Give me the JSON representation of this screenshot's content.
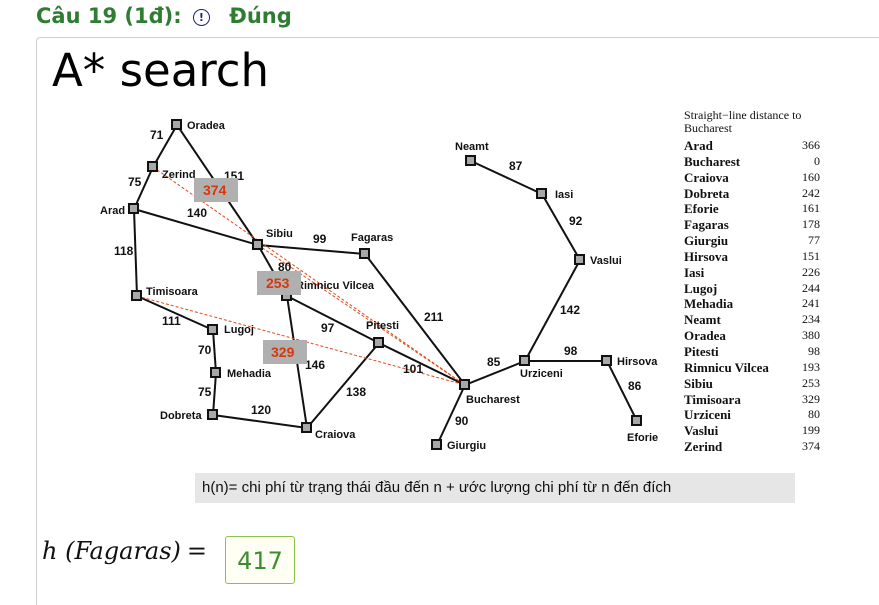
{
  "question": {
    "label": "Câu 19 (1đ):",
    "info_icon": "info-circle-icon",
    "status": "Đúng",
    "status_color": "#2e7d32"
  },
  "title": "A* search",
  "map": {
    "cities": [
      "Oradea",
      "Zerind",
      "Arad",
      "Sibiu",
      "Fagaras",
      "Timisoara",
      "Rimnicu Vilcea",
      "Lugoj",
      "Pitesti",
      "Mehadia",
      "Dobreta",
      "Craiova",
      "Bucharest",
      "Giurgiu",
      "Neamt",
      "Iasi",
      "Vaslui",
      "Urziceni",
      "Hirsova",
      "Eforie"
    ],
    "distances": [
      "71",
      "151",
      "75",
      "140",
      "118",
      "99",
      "80",
      "111",
      "97",
      "211",
      "70",
      "146",
      "101",
      "75",
      "138",
      "120",
      "90",
      "85",
      "98",
      "86",
      "142",
      "92",
      "87"
    ],
    "heuristic_badges": [
      "374",
      "253",
      "329"
    ],
    "badge_text_color": "#d4380d",
    "dashed_color": "#e04a1a"
  },
  "table": {
    "header": "Straight−line distance to Bucharest",
    "rows": [
      {
        "name": "Arad",
        "value": "366"
      },
      {
        "name": "Bucharest",
        "value": "0"
      },
      {
        "name": "Craiova",
        "value": "160"
      },
      {
        "name": "Dobreta",
        "value": "242"
      },
      {
        "name": "Eforie",
        "value": "161"
      },
      {
        "name": "Fagaras",
        "value": "178"
      },
      {
        "name": "Giurgiu",
        "value": "77"
      },
      {
        "name": "Hirsova",
        "value": "151"
      },
      {
        "name": "Iasi",
        "value": "226"
      },
      {
        "name": "Lugoj",
        "value": "244"
      },
      {
        "name": "Mehadia",
        "value": "241"
      },
      {
        "name": "Neamt",
        "value": "234"
      },
      {
        "name": "Oradea",
        "value": "380"
      },
      {
        "name": "Pitesti",
        "value": "98"
      },
      {
        "name": "Rimnicu Vilcea",
        "value": "193"
      },
      {
        "name": "Sibiu",
        "value": "253"
      },
      {
        "name": "Timisoara",
        "value": "329"
      },
      {
        "name": "Urziceni",
        "value": "80"
      },
      {
        "name": "Vaslui",
        "value": "199"
      },
      {
        "name": "Zerind",
        "value": "374"
      }
    ]
  },
  "formula": "h(n)= chi phí từ trạng thái đầu đến n + ước lượng chi phí từ n đến đích",
  "answer": {
    "lhs": "h (Fagaras)",
    "eq": "=",
    "value": "417"
  }
}
